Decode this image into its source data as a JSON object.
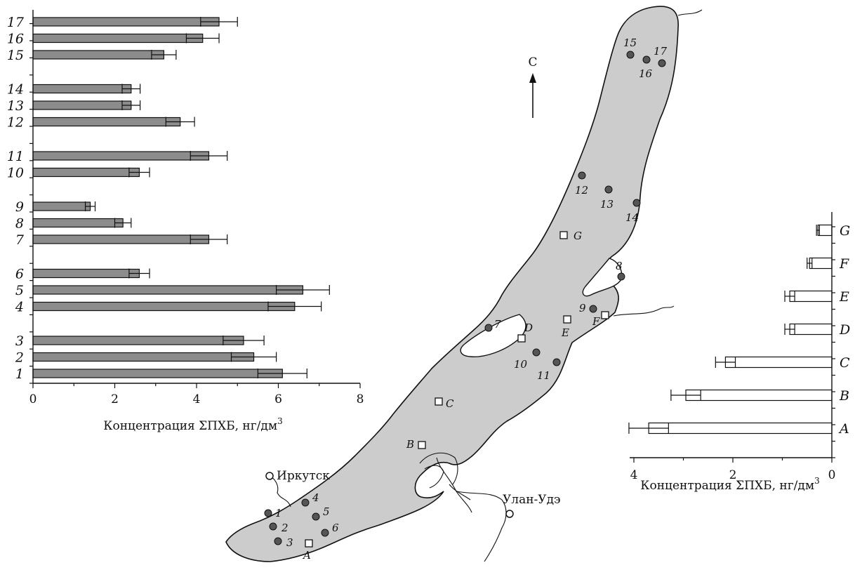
{
  "north_label": "С",
  "cities": [
    {
      "name": "Иркутск"
    },
    {
      "name": "Улан-Удэ"
    }
  ],
  "map_stations": [
    {
      "label": "1",
      "kind": "bottom-sediment"
    },
    {
      "label": "2",
      "kind": "bottom-sediment"
    },
    {
      "label": "3",
      "kind": "bottom-sediment"
    },
    {
      "label": "4",
      "kind": "bottom-sediment"
    },
    {
      "label": "5",
      "kind": "bottom-sediment"
    },
    {
      "label": "6",
      "kind": "bottom-sediment"
    },
    {
      "label": "7",
      "kind": "bottom-sediment"
    },
    {
      "label": "8",
      "kind": "bottom-sediment"
    },
    {
      "label": "9",
      "kind": "bottom-sediment"
    },
    {
      "label": "10",
      "kind": "bottom-sediment"
    },
    {
      "label": "11",
      "kind": "bottom-sediment"
    },
    {
      "label": "12",
      "kind": "bottom-sediment"
    },
    {
      "label": "13",
      "kind": "bottom-sediment"
    },
    {
      "label": "14",
      "kind": "bottom-sediment"
    },
    {
      "label": "15",
      "kind": "bottom-sediment"
    },
    {
      "label": "16",
      "kind": "bottom-sediment"
    },
    {
      "label": "17",
      "kind": "bottom-sediment"
    },
    {
      "label": "A",
      "kind": "water"
    },
    {
      "label": "B",
      "kind": "water"
    },
    {
      "label": "C",
      "kind": "water"
    },
    {
      "label": "D",
      "kind": "water"
    },
    {
      "label": "E",
      "kind": "water"
    },
    {
      "label": "F",
      "kind": "water"
    },
    {
      "label": "G",
      "kind": "water"
    }
  ],
  "colors": {
    "bar_fill": "#8c8c8c",
    "lake_fill": "#cccccc",
    "dot": "#555555",
    "ink": "#111111"
  },
  "chart_data": [
    {
      "type": "bar",
      "orientation": "horizontal",
      "categories": [
        "1",
        "2",
        "3",
        "4",
        "5",
        "6",
        "7",
        "8",
        "9",
        "10",
        "11",
        "12",
        "13",
        "14",
        "15",
        "16",
        "17"
      ],
      "values": [
        6.1,
        5.4,
        5.15,
        6.4,
        6.6,
        2.6,
        4.3,
        2.2,
        1.4,
        2.6,
        4.3,
        3.6,
        2.4,
        2.4,
        3.2,
        4.15,
        4.55
      ],
      "errors": [
        0.6,
        0.55,
        0.5,
        0.65,
        0.65,
        0.25,
        0.45,
        0.2,
        0.12,
        0.25,
        0.45,
        0.35,
        0.22,
        0.22,
        0.3,
        0.4,
        0.45
      ],
      "xlabel": "Концентрация ΣПХБ, нг/дм",
      "xlabel_sup": "3",
      "xlim": [
        0,
        8
      ],
      "xticks": [
        0,
        2,
        4,
        6,
        8
      ],
      "grid": false,
      "bar_color": "#8c8c8c"
    },
    {
      "type": "bar",
      "orientation": "horizontal",
      "x_axis_reversed": true,
      "categories": [
        "A",
        "B",
        "C",
        "D",
        "E",
        "F",
        "G"
      ],
      "values": [
        3.7,
        2.95,
        2.15,
        0.85,
        0.85,
        0.45,
        0.28
      ],
      "errors": [
        0.4,
        0.3,
        0.2,
        0.1,
        0.1,
        0.05,
        0.03
      ],
      "xlabel": "Концентрация ΣПХБ, нг/дм",
      "xlabel_sup": "3",
      "xlim": [
        0,
        4
      ],
      "xticks": [
        4,
        2,
        0
      ],
      "grid": false,
      "bar_color": "#ffffff"
    }
  ]
}
